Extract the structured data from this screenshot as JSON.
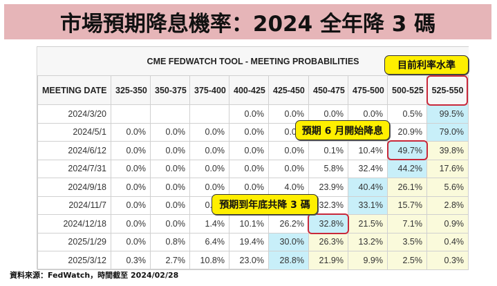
{
  "title": "市場預期降息機率：2024 全年降 3 碼",
  "table": {
    "caption": "CME FEDWATCH TOOL - MEETING PROBABILITIES",
    "headers": [
      "MEETING DATE",
      "325-350",
      "350-375",
      "375-400",
      "400-425",
      "425-450",
      "450-475",
      "475-500",
      "500-525",
      "525-550"
    ],
    "rows": [
      {
        "date": "2024/3/20",
        "cells": [
          "",
          "",
          "",
          "0.0%",
          "0.0%",
          "0.0%",
          "0.0%",
          "0.5%",
          "99.5%"
        ],
        "colors": [
          "",
          "",
          "",
          "",
          "",
          "",
          "",
          "",
          "blue"
        ]
      },
      {
        "date": "2024/5/1",
        "cells": [
          "0.0%",
          "0.0%",
          "0.0%",
          "0.0%",
          "0.0%",
          "0.0%",
          "0.0%",
          "20.9%",
          "79.0%"
        ],
        "colors": [
          "",
          "",
          "",
          "",
          "",
          "",
          "",
          "",
          "blue"
        ]
      },
      {
        "date": "2024/6/12",
        "cells": [
          "0.0%",
          "0.0%",
          "0.0%",
          "0.0%",
          "0.0%",
          "0.1%",
          "10.4%",
          "49.7%",
          "39.8%"
        ],
        "colors": [
          "",
          "",
          "",
          "",
          "",
          "",
          "",
          "blue",
          "yellow"
        ]
      },
      {
        "date": "2024/7/31",
        "cells": [
          "0.0%",
          "0.0%",
          "0.0%",
          "0.0%",
          "0.0%",
          "5.8%",
          "32.4%",
          "44.2%",
          "17.6%"
        ],
        "colors": [
          "",
          "",
          "",
          "",
          "",
          "",
          "",
          "blue",
          "yellow"
        ]
      },
      {
        "date": "2024/9/18",
        "cells": [
          "0.0%",
          "0.0%",
          "0.0%",
          "0.0%",
          "4.0%",
          "23.9%",
          "40.4%",
          "26.1%",
          "5.6%"
        ],
        "colors": [
          "",
          "",
          "",
          "",
          "",
          "",
          "blue",
          "yellow",
          "yellow"
        ]
      },
      {
        "date": "2024/11/7",
        "cells": [
          "0.0%",
          "0.0%",
          "0.0%",
          "0.0%",
          "0.0%",
          "32.3%",
          "33.1%",
          "15.7%",
          "2.8%"
        ],
        "colors": [
          "",
          "",
          "",
          "",
          "",
          "",
          "blue",
          "yellow",
          "yellow"
        ]
      },
      {
        "date": "2024/12/18",
        "cells": [
          "0.0%",
          "0.0%",
          "1.4%",
          "10.1%",
          "26.2%",
          "32.8%",
          "21.5%",
          "7.1%",
          "0.9%"
        ],
        "colors": [
          "",
          "",
          "",
          "",
          "",
          "blue",
          "yellow",
          "yellow",
          "yellow"
        ]
      },
      {
        "date": "2025/1/29",
        "cells": [
          "0.0%",
          "0.8%",
          "6.4%",
          "19.4%",
          "30.0%",
          "26.3%",
          "13.2%",
          "3.5%",
          "0.4%"
        ],
        "colors": [
          "",
          "",
          "",
          "",
          "blue",
          "yellow",
          "yellow",
          "yellow",
          "yellow"
        ]
      },
      {
        "date": "2025/3/12",
        "cells": [
          "0.3%",
          "2.7%",
          "10.8%",
          "23.0%",
          "28.8%",
          "21.9%",
          "9.9%",
          "2.5%",
          "0.3%"
        ],
        "colors": [
          "",
          "",
          "",
          "",
          "blue",
          "yellow",
          "yellow",
          "yellow",
          "yellow"
        ]
      }
    ]
  },
  "callouts": {
    "current_rate": "目前利率水準",
    "june_cut": "預期 6 月開始降息",
    "year_end": "預期到年底共降 3 碼"
  },
  "source": "資料來源：FedWatch，時間截至 2024/02/28",
  "colors": {
    "title_bg": "#e6b5b8",
    "highlight_blue": "#c8eff9",
    "highlight_yellow": "#fafadb",
    "callout": "#ffef00",
    "red_box": "#c8283a"
  }
}
